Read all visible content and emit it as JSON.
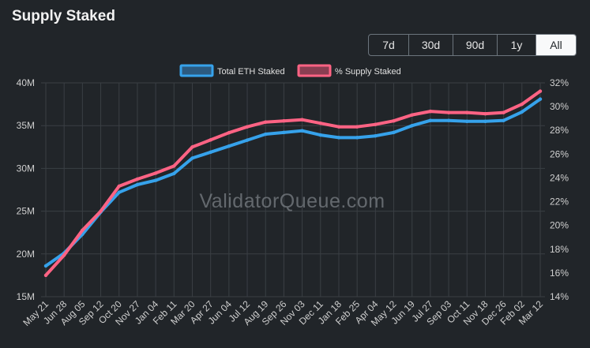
{
  "header": {
    "title": "Supply Staked",
    "ranges": [
      {
        "label": "7d",
        "active": false
      },
      {
        "label": "30d",
        "active": false
      },
      {
        "label": "90d",
        "active": false
      },
      {
        "label": "1y",
        "active": false
      },
      {
        "label": "All",
        "active": true
      }
    ]
  },
  "watermark": "ValidatorQueue.com",
  "colors": {
    "eth_staked": "#36a2eb",
    "pct_staked": "#ff6384",
    "grid": "#3a3f44"
  },
  "chart_data": {
    "type": "line",
    "legend_position": "top",
    "grid": true,
    "x_ticks": [
      "May 21",
      "Jun 28",
      "Aug 05",
      "Sep 12",
      "Oct 20",
      "Nov 27",
      "Jan 04",
      "Feb 11",
      "Mar 20",
      "Apr 27",
      "Jun 04",
      "Jul 12",
      "Aug 19",
      "Sep 26",
      "Nov 03",
      "Dec 11",
      "Jan 18",
      "Feb 25",
      "Apr 04",
      "May 12",
      "Jun 19",
      "Jul 27",
      "Sep 03",
      "Oct 11",
      "Nov 18",
      "Dec 26",
      "Feb 02",
      "Mar 12"
    ],
    "y_left": {
      "ticks": [
        "15M",
        "20M",
        "25M",
        "30M",
        "35M",
        "40M"
      ],
      "min": 15,
      "max": 40
    },
    "y_right": {
      "ticks": [
        "14%",
        "16%",
        "18%",
        "20%",
        "22%",
        "24%",
        "26%",
        "28%",
        "30%",
        "32%"
      ],
      "min": 14,
      "max": 32
    },
    "series": [
      {
        "name": "Total ETH Staked",
        "axis": "left",
        "x": [
          0,
          1,
          2,
          3,
          4,
          5,
          6,
          7,
          8,
          9,
          10,
          11,
          12,
          13,
          14,
          15,
          16,
          17,
          18,
          19,
          20,
          21,
          22,
          23,
          24,
          25,
          26,
          27
        ],
        "values": [
          18.6,
          20.1,
          22.3,
          24.9,
          27.2,
          28.1,
          28.6,
          29.4,
          31.2,
          31.9,
          32.6,
          33.3,
          34.0,
          34.2,
          34.4,
          33.9,
          33.6,
          33.6,
          33.8,
          34.2,
          35.0,
          35.6,
          35.6,
          35.5,
          35.5,
          35.6,
          36.6,
          38.1
        ]
      },
      {
        "name": "% Supply Staked",
        "axis": "right",
        "x": [
          0,
          1,
          2,
          3,
          4,
          5,
          6,
          7,
          8,
          9,
          10,
          11,
          12,
          13,
          14,
          15,
          16,
          17,
          18,
          19,
          20,
          21,
          22,
          23,
          24,
          25,
          26,
          27
        ],
        "values": [
          15.8,
          17.5,
          19.6,
          21.2,
          23.3,
          23.9,
          24.4,
          25.0,
          26.6,
          27.2,
          27.8,
          28.3,
          28.7,
          28.8,
          28.9,
          28.6,
          28.3,
          28.3,
          28.5,
          28.8,
          29.3,
          29.6,
          29.5,
          29.5,
          29.4,
          29.5,
          30.2,
          31.3
        ]
      }
    ]
  }
}
